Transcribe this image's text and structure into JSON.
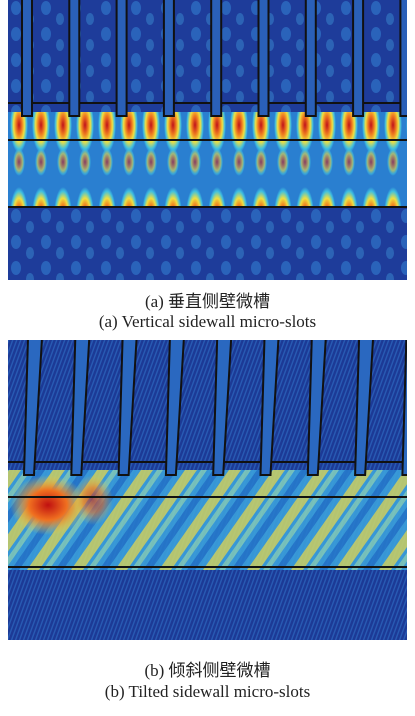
{
  "panels": [
    {
      "caption_zh": "(a) 垂直侧壁微槽",
      "caption_en": "(a) Vertical sidewall micro-slots"
    },
    {
      "caption_zh": "(b) 倾斜侧壁微槽",
      "caption_en": "(b) Tilted sidewall micro-slots"
    }
  ]
}
